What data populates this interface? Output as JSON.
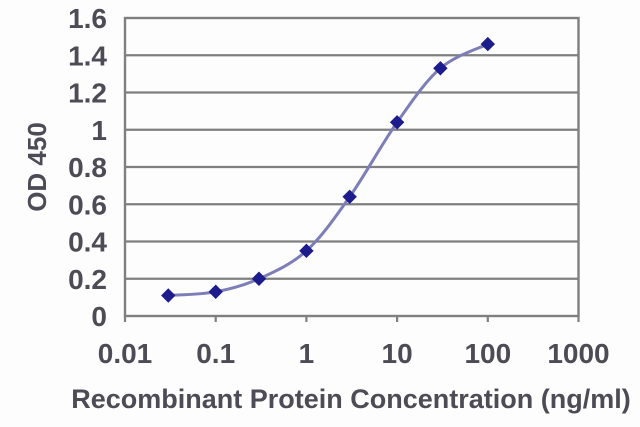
{
  "chart_data": {
    "type": "line",
    "title": "",
    "xlabel": "Recombinant Protein Concentration (ng/ml)",
    "ylabel": "OD 450",
    "x_scale": "log",
    "y_scale": "linear",
    "xlim": [
      0.01,
      1000
    ],
    "ylim": [
      0,
      1.6
    ],
    "grid": "horizontal",
    "legend": "none",
    "marker": "diamond",
    "x": [
      0.03,
      0.1,
      0.3,
      1,
      3,
      10,
      30,
      100
    ],
    "y": [
      0.11,
      0.13,
      0.2,
      0.35,
      0.64,
      1.04,
      1.33,
      1.46
    ],
    "x_tick_values": [
      0.01,
      0.1,
      1,
      10,
      100,
      1000
    ],
    "x_tick_labels": [
      "0.01",
      "0.1",
      "1",
      "10",
      "100",
      "1000"
    ],
    "y_tick_values": [
      0,
      0.2,
      0.4,
      0.6,
      0.8,
      1,
      1.2,
      1.4,
      1.6
    ],
    "y_tick_labels": [
      "0",
      "0.2",
      "0.4",
      "0.6",
      "0.8",
      "1",
      "1.2",
      "1.4",
      "1.6"
    ],
    "colors": {
      "line": "#7d7db8",
      "marker": "#1c1c8c",
      "grid": "#7f7f7f",
      "axis_border": "#7f7f7f",
      "text": "#4d4b55",
      "background": "#fdfdfd"
    }
  }
}
